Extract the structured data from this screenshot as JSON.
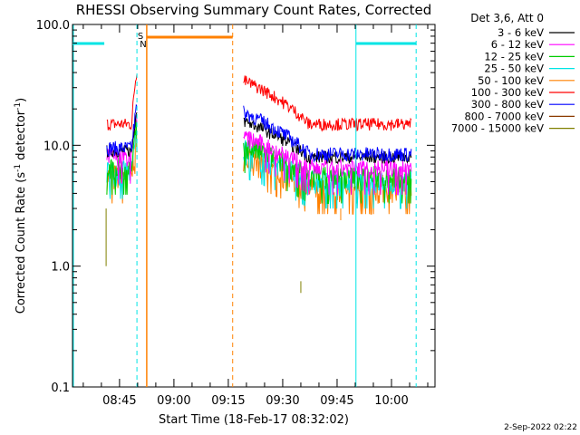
{
  "chart_data": {
    "type": "line",
    "title": "RHESSI Observing Summary Count Rates, Corrected",
    "xlabel": "Start Time (18-Feb-17 08:32:02)",
    "ylabel_main": "Corrected Count Rate (s",
    "ylabel_exp1": "-1",
    "ylabel_mid": " detector",
    "ylabel_exp2": "-1",
    "ylabel_end": ")",
    "yscale": "log",
    "ylim": [
      0.1,
      100
    ],
    "y_ticks": [
      {
        "value": 0.1,
        "label": "0.1"
      },
      {
        "value": 1,
        "label": "1.0"
      },
      {
        "value": 10,
        "label": "10.0"
      },
      {
        "value": 100,
        "label": "100.0"
      }
    ],
    "xlim_minutes": [
      512.03,
      612.0
    ],
    "x_ticks": [
      {
        "minute": 525,
        "label": "08:45"
      },
      {
        "minute": 540,
        "label": "09:00"
      },
      {
        "minute": 555,
        "label": "09:15"
      },
      {
        "minute": 570,
        "label": "09:30"
      },
      {
        "minute": 585,
        "label": "09:45"
      },
      {
        "minute": 600,
        "label": "10:00"
      }
    ],
    "legend_header": "Det 3,6, Att 0",
    "legend_position": "right",
    "series": [
      {
        "name": "3 - 6 keV",
        "color": "#000000"
      },
      {
        "name": "6 - 12 keV",
        "color": "#ff00ff"
      },
      {
        "name": "12 - 25 keV",
        "color": "#00cc00"
      },
      {
        "name": "25 - 50 keV",
        "color": "#00e5e5"
      },
      {
        "name": "50 - 100 keV",
        "color": "#ff8000"
      },
      {
        "name": "100 - 300 keV",
        "color": "#ff0000"
      },
      {
        "name": "300 - 800 keV",
        "color": "#0000ff"
      },
      {
        "name": "800 - 7000 keV",
        "color": "#8b3a00"
      },
      {
        "name": "7000 - 15000 keV",
        "color": "#808000"
      }
    ],
    "segments": [
      {
        "start": 521.5,
        "end": 529.8,
        "base": {
          "red": 15,
          "blue": 9.5,
          "black": 9,
          "magenta": 8,
          "green": 6.5,
          "cyan": 6,
          "orange": 5.5
        }
      },
      {
        "start": 559.2,
        "end": 605.5,
        "base": {
          "red": 15,
          "blue": 8.5,
          "black": 8,
          "magenta": 6.5,
          "green": 5.5,
          "cyan": 5,
          "orange": 4.5
        }
      }
    ],
    "flags": [
      {
        "label": "S",
        "color": "#ff8000"
      },
      {
        "label": "N",
        "color": "#00e5e5"
      }
    ],
    "timestamp": "2-Sep-2022 02:22"
  }
}
